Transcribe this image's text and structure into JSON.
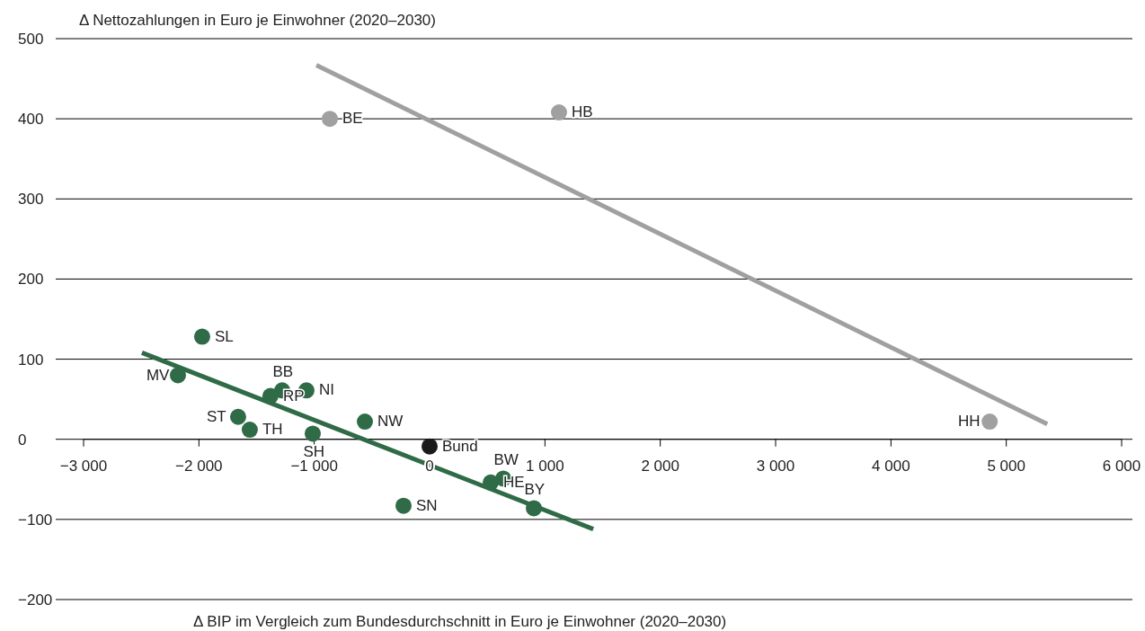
{
  "chart_data": {
    "type": "scatter",
    "ylabel": "Δ Nettozahlungen in Euro je Einwohner (2020–2030)",
    "xlabel": "Δ BIP im Vergleich zum Bundesdurchschnitt in Euro je Einwohner (2020–2030)",
    "xlim": [
      -3000,
      6000
    ],
    "ylim": [
      -200,
      500
    ],
    "xticks": [
      {
        "value": -3000,
        "label": "−3 000"
      },
      {
        "value": -2000,
        "label": "−2 000"
      },
      {
        "value": -1000,
        "label": "−1 000"
      },
      0,
      {
        "value": 1000,
        "label": "1 000"
      },
      {
        "value": 2000,
        "label": "2 000"
      },
      {
        "value": 3000,
        "label": "3 000"
      },
      {
        "value": 4000,
        "label": "4 000"
      },
      {
        "value": 5000,
        "label": "5 000"
      },
      {
        "value": 6000,
        "label": "6 000"
      }
    ],
    "yticks": [
      {
        "value": -200,
        "label": "−200"
      },
      {
        "value": -100,
        "label": "−100"
      },
      0,
      100,
      200,
      300,
      400,
      500
    ],
    "grid": "y",
    "marker": "circle",
    "series": [
      {
        "color": "#a0a0a0",
        "x": [
          -865,
          1122,
          4856
        ],
        "values": [
          400,
          408,
          22
        ]
      },
      {
        "color": "#2e6b46",
        "x": [
          -1972,
          -2182,
          -1278,
          -1380,
          -1068,
          -1660,
          -1559,
          -1013,
          -561,
          -226,
          530,
          639,
          904
        ],
        "values": [
          128,
          80,
          61,
          54,
          61,
          28,
          12,
          7,
          22,
          -83,
          -54,
          -49,
          -86
        ]
      },
      {
        "color": "#1a1a1a",
        "x": [
          0
        ],
        "values": [
          -9
        ]
      },
      {
        "type": "line",
        "color": "#a0a0a0",
        "marker": "none",
        "x": [
          -982,
          5355
        ],
        "values": [
          467,
          19
        ]
      },
      {
        "type": "line",
        "color": "#2e6b46",
        "marker": "none",
        "x": [
          -2494,
          1419
        ],
        "values": [
          108,
          -112
        ]
      }
    ],
    "annotations": [
      {
        "text": "BE",
        "x": -865,
        "y": 400
      },
      {
        "text": "HB",
        "x": 1122,
        "y": 408
      },
      {
        "text": "HH",
        "x": 4856,
        "y": 22
      },
      {
        "text": "SL",
        "x": -1972,
        "y": 128
      },
      {
        "text": "MV",
        "x": -2182,
        "y": 80
      },
      {
        "text": "BB",
        "x": -1278,
        "y": 61
      },
      {
        "text": "RP",
        "x": -1380,
        "y": 54
      },
      {
        "text": "NI",
        "x": -1068,
        "y": 61
      },
      {
        "text": "ST",
        "x": -1660,
        "y": 28
      },
      {
        "text": "TH",
        "x": -1559,
        "y": 12
      },
      {
        "text": "SH",
        "x": -1013,
        "y": 7
      },
      {
        "text": "NW",
        "x": -561,
        "y": 22
      },
      {
        "text": "Bund",
        "x": 0,
        "y": -9
      },
      {
        "text": "SN",
        "x": -226,
        "y": -83
      },
      {
        "text": "HE",
        "x": 530,
        "y": -54
      },
      {
        "text": "BW",
        "x": 639,
        "y": -49
      },
      {
        "text": "BY",
        "x": 904,
        "y": -86
      }
    ]
  }
}
